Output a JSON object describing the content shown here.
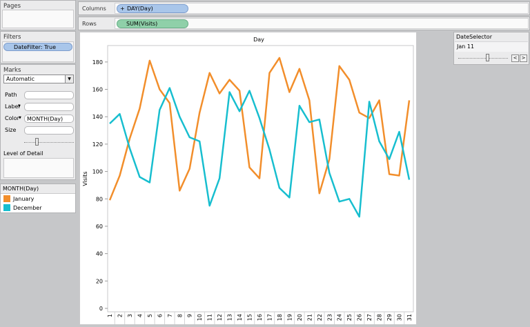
{
  "pages": {
    "title": "Pages"
  },
  "filters": {
    "title": "Filters",
    "pill": "DateFilter: True"
  },
  "marks": {
    "title": "Marks",
    "mark_type": "Automatic",
    "path_label": "Path",
    "label_label": "Label",
    "color_label": "Color",
    "color_field": "MONTH(Day)",
    "size_label": "Size",
    "level_of_detail_label": "Level of Detail"
  },
  "legend": {
    "title": "MONTH(Day)",
    "items": [
      {
        "label": "January",
        "color": "#f28e2b"
      },
      {
        "label": "December",
        "color": "#17becf"
      }
    ]
  },
  "columns_shelf": {
    "label": "Columns",
    "pill": "DAY(Day)",
    "pill_prefix": "+"
  },
  "rows_shelf": {
    "label": "Rows",
    "pill": "SUM(Visits)"
  },
  "date_selector": {
    "title": "DateSelector",
    "value": "Jan 11",
    "prev": "<",
    "next": ">"
  },
  "chart_data": {
    "type": "line",
    "title": "Day",
    "xlabel": "",
    "ylabel": "Visits",
    "x": [
      1,
      2,
      3,
      4,
      5,
      6,
      7,
      8,
      9,
      10,
      11,
      12,
      13,
      14,
      15,
      16,
      17,
      18,
      19,
      20,
      21,
      22,
      23,
      24,
      25,
      26,
      27,
      28,
      29,
      30,
      31
    ],
    "ylim": [
      0,
      190
    ],
    "yticks": [
      0,
      20,
      40,
      60,
      80,
      100,
      120,
      140,
      160,
      180
    ],
    "grid": false,
    "series": [
      {
        "name": "January",
        "color": "#f28e2b",
        "values": [
          79,
          97,
          124,
          146,
          181,
          160,
          150,
          86,
          102,
          143,
          172,
          157,
          167,
          159,
          103,
          95,
          172,
          183,
          158,
          175,
          152,
          84,
          109,
          177,
          167,
          143,
          139,
          152,
          98,
          97,
          152
        ]
      },
      {
        "name": "December",
        "color": "#17becf",
        "values": [
          135,
          142,
          117,
          96,
          92,
          145,
          161,
          140,
          125,
          122,
          75,
          95,
          158,
          144,
          159,
          139,
          116,
          88,
          81,
          148,
          136,
          138,
          99,
          78,
          80,
          67,
          151,
          122,
          109,
          129,
          94
        ]
      }
    ]
  }
}
